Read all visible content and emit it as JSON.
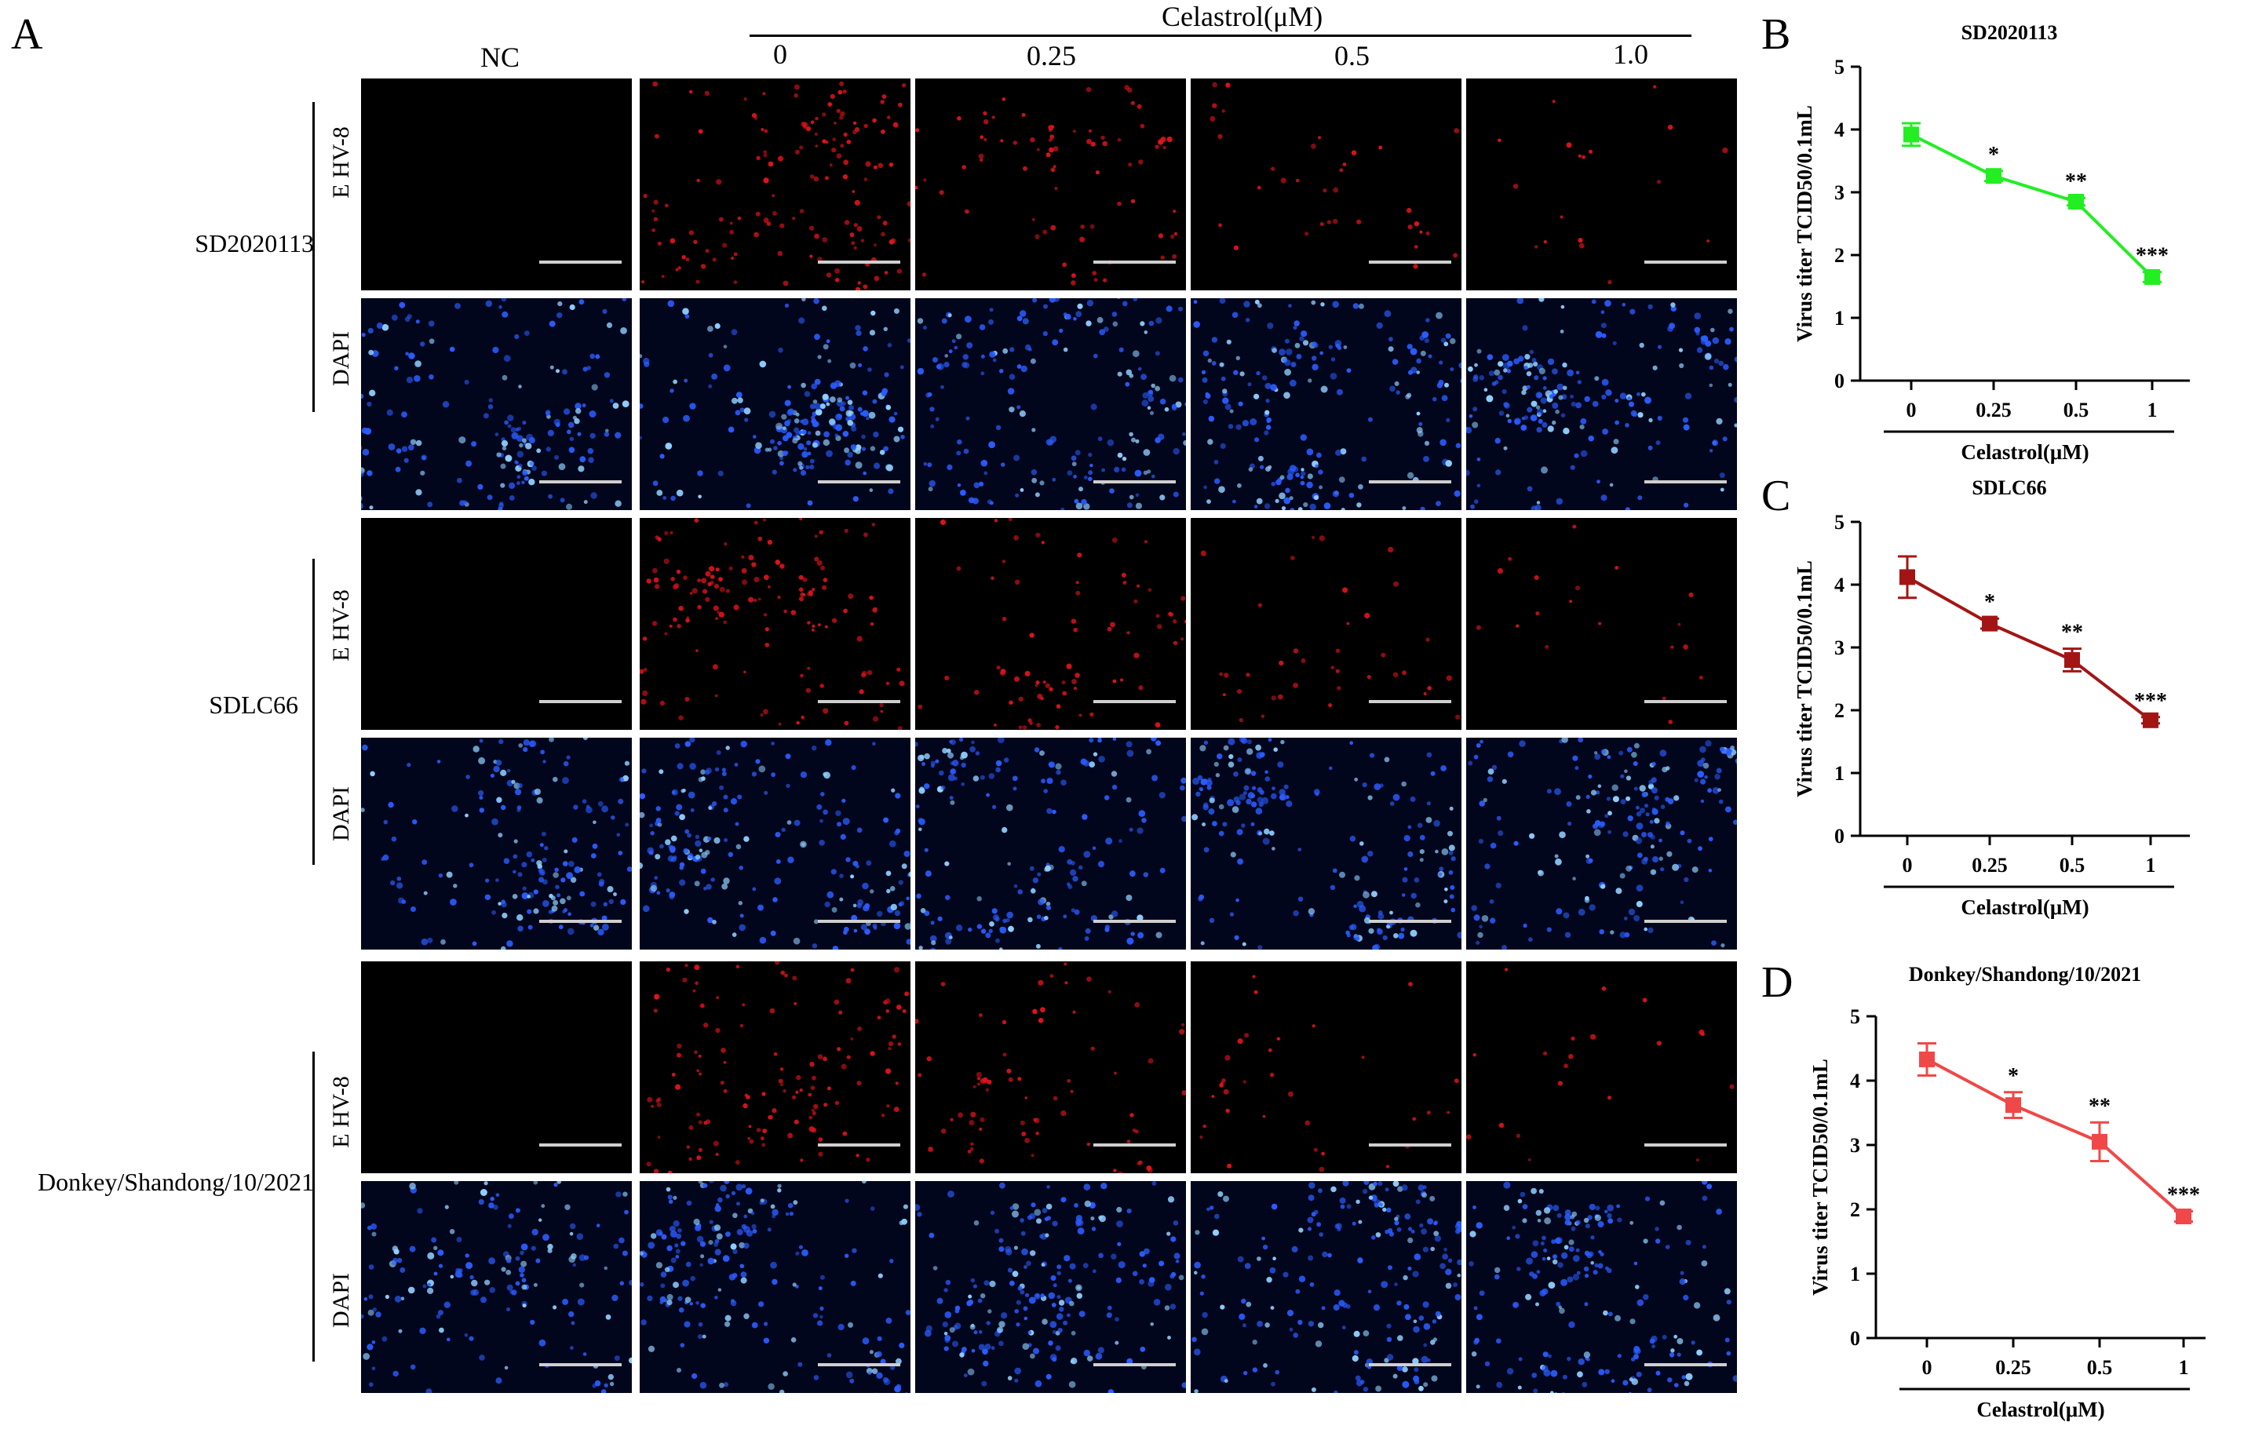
{
  "figure": {
    "panel_labels": {
      "a": "A",
      "b": "B",
      "c": "C",
      "d": "D"
    },
    "treatment_header": "Celastrol(μM)",
    "columns": [
      "NC",
      "0",
      "0.25",
      "0.5",
      "1.0"
    ],
    "strains": [
      {
        "name": "SD2020113",
        "stains": [
          "E HV-8",
          "DAPI"
        ]
      },
      {
        "name": "SDLC66",
        "stains": [
          "E HV-8",
          "DAPI"
        ]
      },
      {
        "name": "Donkey/Shandong/10/2021",
        "stains": [
          "E HV-8",
          "DAPI"
        ]
      }
    ],
    "channel_colors": {
      "ehv8": "#e0131a",
      "dapi": "#2a5cff"
    },
    "red_intensity": [
      0,
      0.85,
      0.45,
      0.22,
      0.12
    ],
    "dapi_density": [
      0.7,
      0.85,
      0.85,
      0.85,
      0.8
    ]
  },
  "chart_data": [
    {
      "type": "line",
      "panel": "B",
      "title": "SD2020113",
      "ylabel": "Virus titer TCID50/0.1mL",
      "xlabel": "Celastrol(μM)",
      "categories": [
        "0",
        "0.25",
        "0.5",
        "1"
      ],
      "values": [
        3.92,
        3.26,
        2.85,
        1.65
      ],
      "errors": [
        0.18,
        0.08,
        0.06,
        0.08
      ],
      "significance": [
        "",
        "*",
        "**",
        "***"
      ],
      "yticks": [
        "0",
        "1",
        "2",
        "3",
        "4",
        "5"
      ],
      "ylim": [
        0,
        5
      ],
      "color": "#22ee22"
    },
    {
      "type": "line",
      "panel": "C",
      "title": "SDLC66",
      "ylabel": "Virus titer TCID50/0.1mL",
      "xlabel": "Celastrol(μM)",
      "categories": [
        "0",
        "0.25",
        "0.5",
        "1"
      ],
      "values": [
        4.12,
        3.38,
        2.8,
        1.84
      ],
      "errors": [
        0.33,
        0.08,
        0.18,
        0.05
      ],
      "significance": [
        "",
        "*",
        "**",
        "***"
      ],
      "yticks": [
        "0",
        "1",
        "2",
        "3",
        "4",
        "5"
      ],
      "ylim": [
        0,
        5
      ],
      "color": "#a31515"
    },
    {
      "type": "line",
      "panel": "D",
      "title": "Donkey/Shandong/10/2021",
      "ylabel": "Virus titer TCID50/0.1mL",
      "xlabel": "Celastrol(μM)",
      "categories": [
        "0",
        "0.25",
        "0.5",
        "1"
      ],
      "values": [
        4.33,
        3.62,
        3.05,
        1.89
      ],
      "errors": [
        0.25,
        0.2,
        0.3,
        0.08
      ],
      "significance": [
        "",
        "*",
        "**",
        "***"
      ],
      "yticks": [
        "0",
        "1",
        "2",
        "3",
        "4",
        "5"
      ],
      "ylim": [
        0,
        5
      ],
      "color": "#f04848"
    }
  ]
}
